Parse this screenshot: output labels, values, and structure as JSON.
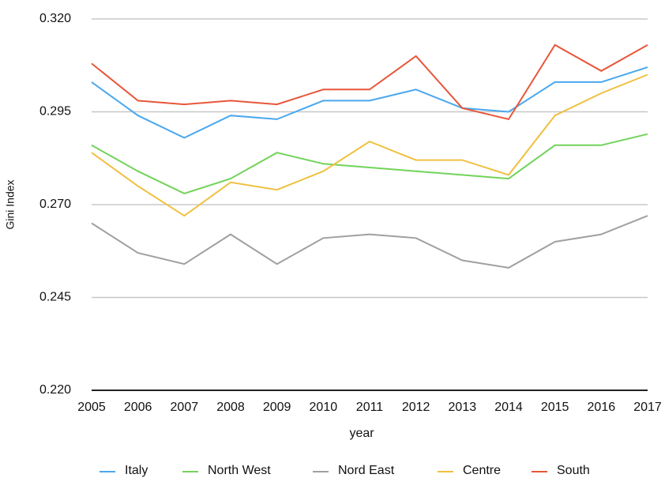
{
  "chart_data": {
    "type": "line",
    "x_label": "year",
    "y_label": "Gini Index",
    "categories": [
      "2005",
      "2006",
      "2007",
      "2008",
      "2009",
      "2010",
      "2011",
      "2012",
      "2013",
      "2014",
      "2015",
      "2016",
      "2017"
    ],
    "series": [
      {
        "name": "Italy",
        "color": "#4aa8ee",
        "values": [
          0.303,
          0.294,
          0.288,
          0.294,
          0.293,
          0.298,
          0.298,
          0.301,
          0.296,
          0.295,
          0.303,
          0.303,
          0.307
        ]
      },
      {
        "name": "North West",
        "color": "#72d35a",
        "values": [
          0.286,
          0.279,
          0.273,
          0.277,
          0.284,
          0.281,
          0.28,
          0.279,
          0.278,
          0.277,
          0.286,
          0.286,
          0.289
        ]
      },
      {
        "name": "Nord East",
        "color": "#a0a0a0",
        "values": [
          0.265,
          0.257,
          0.254,
          0.262,
          0.254,
          0.261,
          0.262,
          0.261,
          0.255,
          0.253,
          0.26,
          0.262,
          0.267
        ]
      },
      {
        "name": "Centre",
        "color": "#f0c040",
        "values": [
          0.284,
          0.275,
          0.267,
          0.276,
          0.274,
          0.279,
          0.287,
          0.282,
          0.282,
          0.278,
          0.294,
          0.3,
          0.305
        ]
      },
      {
        "name": "South",
        "color": "#e8563a",
        "values": [
          0.308,
          0.298,
          0.297,
          0.298,
          0.297,
          0.301,
          0.301,
          0.31,
          0.296,
          0.293,
          0.313,
          0.306,
          0.313
        ]
      }
    ],
    "ylim": [
      0.22,
      0.32
    ],
    "yticks": [
      {
        "value": 0.22,
        "label": "0.220"
      },
      {
        "value": 0.245,
        "label": "0.245"
      },
      {
        "value": 0.27,
        "label": "0.270"
      },
      {
        "value": 0.295,
        "label": "0.295"
      },
      {
        "value": 0.32,
        "label": "0.320"
      }
    ],
    "grid": true,
    "legend": "bottom"
  }
}
